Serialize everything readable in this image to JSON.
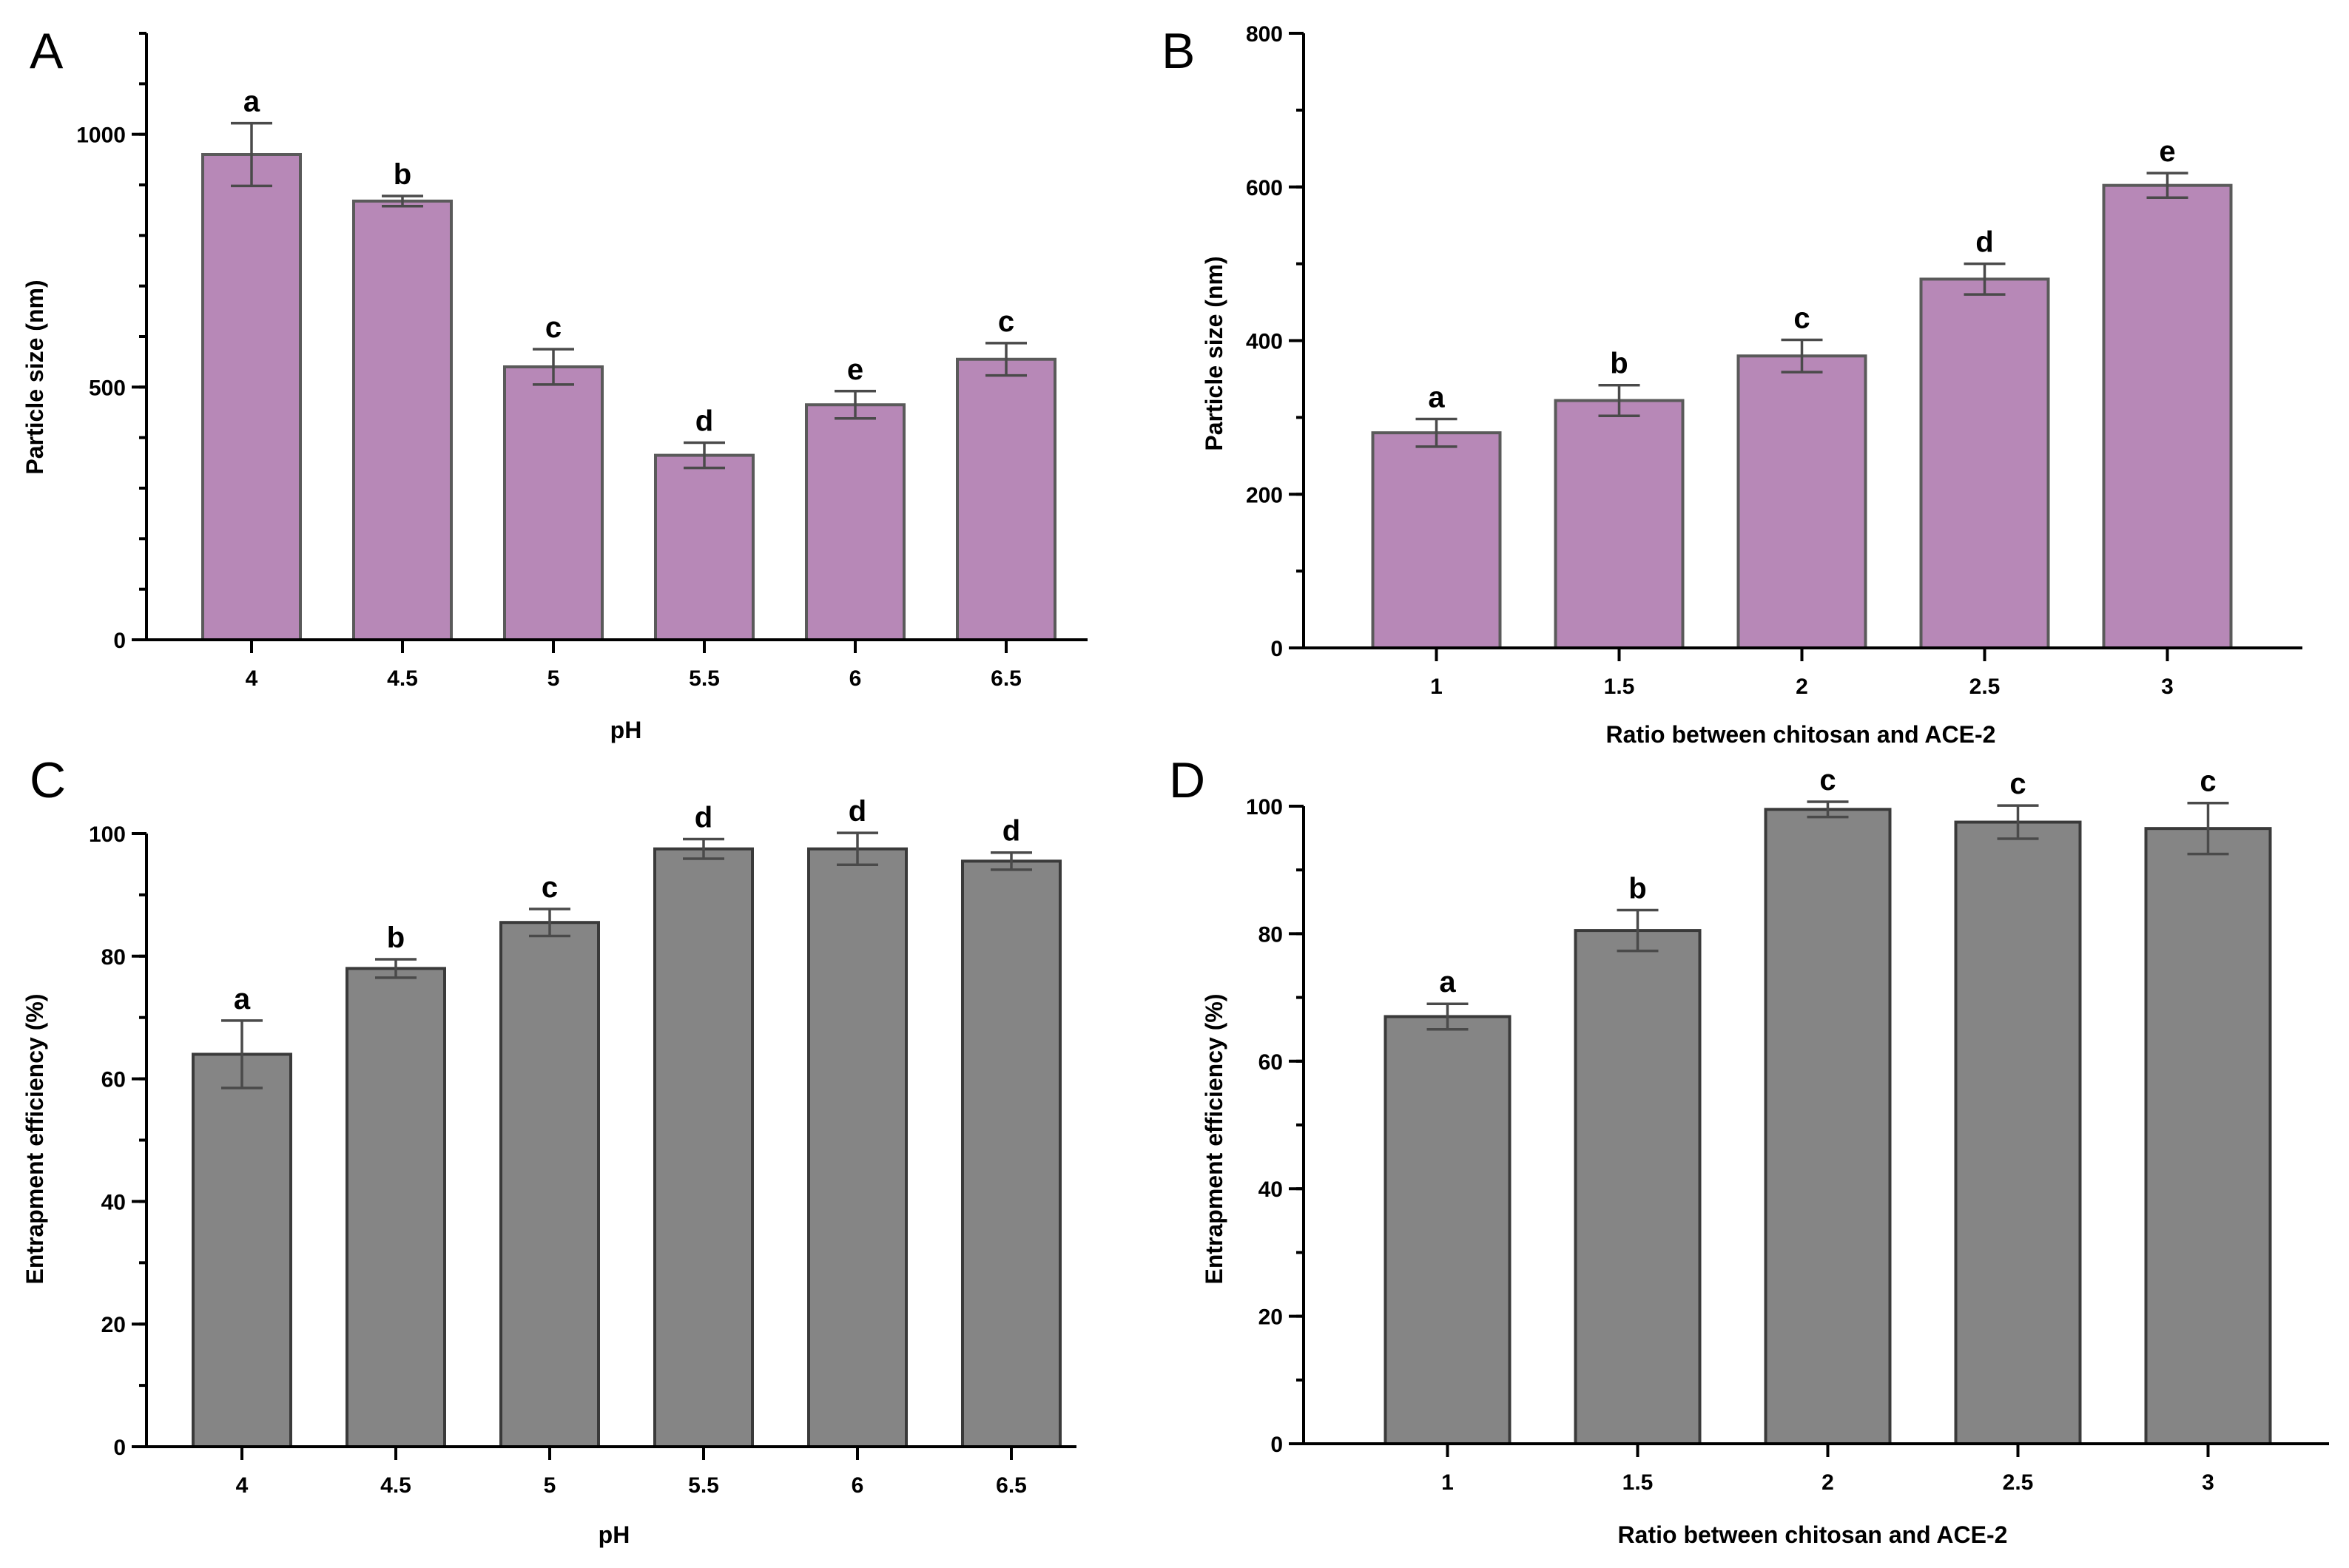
{
  "chart_data": [
    {
      "type": "bar",
      "panel": "A",
      "categories": [
        "4",
        "4.5",
        "5",
        "5.5",
        "6",
        "6.5"
      ],
      "values": [
        960,
        868,
        540,
        365,
        465,
        555
      ],
      "errors": [
        62,
        10,
        35,
        25,
        27,
        32
      ],
      "significance": [
        "a",
        "b",
        "c",
        "d",
        "e",
        "c"
      ],
      "xlabel": "pH",
      "ylabel": "Particle size (nm)",
      "ylim": [
        0,
        1200
      ],
      "yticks": [
        0,
        500,
        1000
      ],
      "ytick_labels": [
        "0",
        "500",
        "1000"
      ],
      "minor_step": 100,
      "bar_color": "#b788b7",
      "bar_edge": "#5a5a5a"
    },
    {
      "type": "bar",
      "panel": "B",
      "categories": [
        "1",
        "1.5",
        "2",
        "2.5",
        "3"
      ],
      "values": [
        280,
        322,
        380,
        480,
        602
      ],
      "errors": [
        18,
        20,
        21,
        20,
        16
      ],
      "significance": [
        "a",
        "b",
        "c",
        "d",
        "e"
      ],
      "xlabel": "Ratio between chitosan and ACE-2",
      "ylabel": "Particle size (nm)",
      "ylim": [
        0,
        800
      ],
      "yticks": [
        0,
        200,
        400,
        600,
        800
      ],
      "ytick_labels": [
        "0",
        "200",
        "400",
        "600",
        "800"
      ],
      "minor_step": 100,
      "bar_color": "#b788b7",
      "bar_edge": "#5a5a5a"
    },
    {
      "type": "bar",
      "panel": "C",
      "categories": [
        "4",
        "4.5",
        "5",
        "5.5",
        "6",
        "6.5"
      ],
      "values": [
        64,
        78,
        85.5,
        97.5,
        97.5,
        95.5
      ],
      "errors": [
        5.5,
        1.5,
        2.2,
        1.6,
        2.6,
        1.4
      ],
      "significance": [
        "a",
        "b",
        "c",
        "d",
        "d",
        "d"
      ],
      "xlabel": "pH",
      "ylabel": "Entrapment efficiency (%)",
      "ylim": [
        0,
        100
      ],
      "yticks": [
        0,
        20,
        40,
        60,
        80,
        100
      ],
      "ytick_labels": [
        "0",
        "20",
        "40",
        "60",
        "80",
        "100"
      ],
      "minor_step": 10,
      "bar_color": "#858585",
      "bar_edge": "#3a3a3a"
    },
    {
      "type": "bar",
      "panel": "D",
      "categories": [
        "1",
        "1.5",
        "2",
        "2.5",
        "3"
      ],
      "values": [
        67,
        80.5,
        99.5,
        97.5,
        96.5
      ],
      "errors": [
        2.0,
        3.2,
        1.2,
        2.6,
        4.0
      ],
      "significance": [
        "a",
        "b",
        "c",
        "c",
        "c"
      ],
      "xlabel": "Ratio between chitosan and ACE-2",
      "ylabel": "Entrapment efficiency (%)",
      "ylim": [
        0,
        100
      ],
      "yticks": [
        0,
        20,
        40,
        60,
        80,
        100
      ],
      "ytick_labels": [
        "0",
        "20",
        "40",
        "60",
        "80",
        "100"
      ],
      "minor_step": 10,
      "bar_color": "#858585",
      "bar_edge": "#3a3a3a"
    }
  ]
}
